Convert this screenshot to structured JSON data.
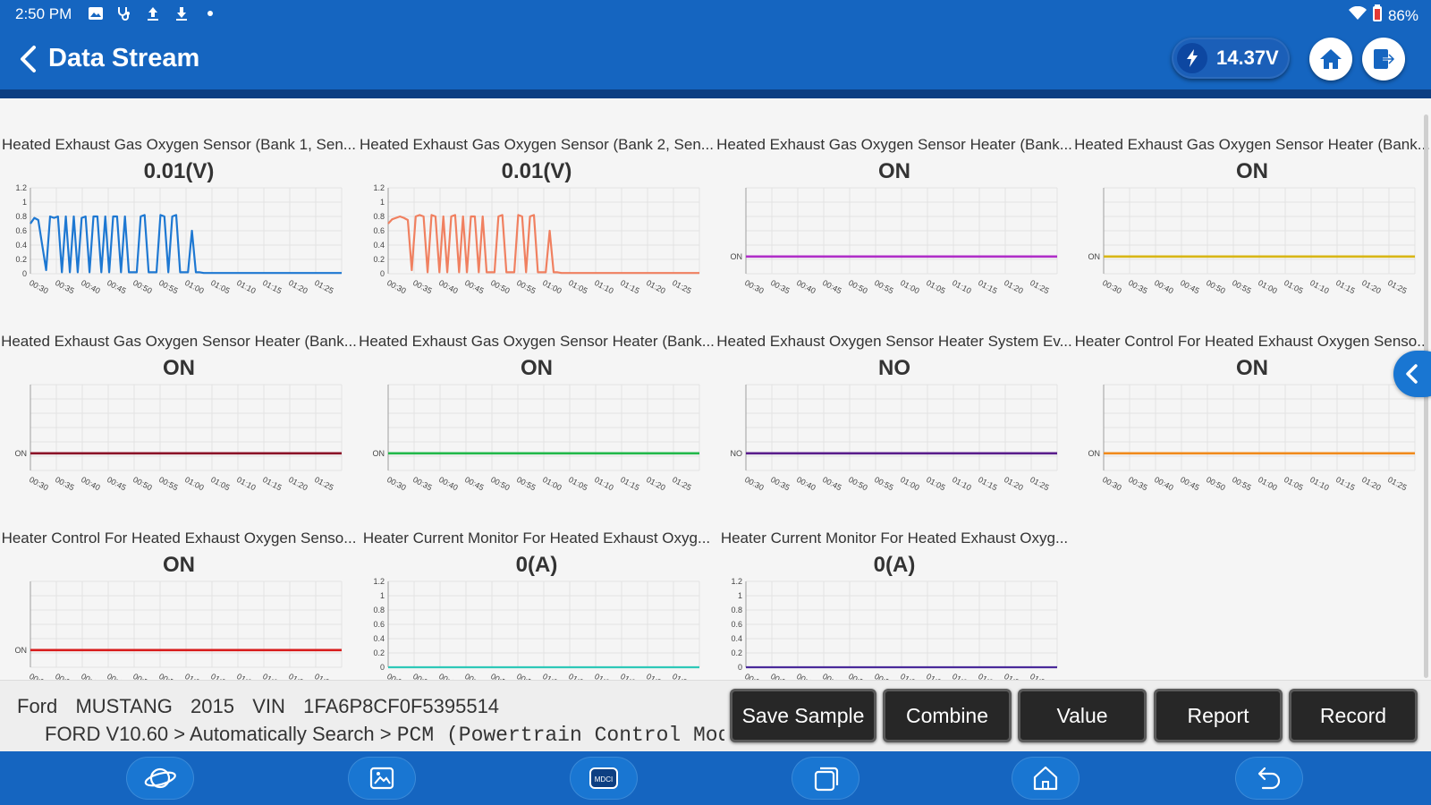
{
  "status_bar": {
    "time": "2:50 PM",
    "icons": [
      "image-icon",
      "stethoscope-icon",
      "upload-icon",
      "download-icon",
      "dot-icon"
    ],
    "battery": "86%"
  },
  "header": {
    "title": "Data Stream",
    "voltage": "14.37V"
  },
  "x_ticks": [
    "00:30",
    "00:35",
    "00:40",
    "00:45",
    "00:50",
    "00:55",
    "01:00",
    "01:05",
    "01:10",
    "01:15",
    "01:20",
    "01:25"
  ],
  "y_ticks": [
    "0",
    "0.2",
    "0.4",
    "0.6",
    "0.8",
    "1",
    "1.2"
  ],
  "panels": [
    {
      "name": "Heated Exhaust Gas Oxygen Sensor (Bank 1, Sen...",
      "value": "0.01(V)"
    },
    {
      "name": "Heated Exhaust Gas Oxygen Sensor (Bank 2, Sen...",
      "value": "0.01(V)"
    },
    {
      "name": "Heated Exhaust Gas Oxygen Sensor Heater (Bank...",
      "value": "ON"
    },
    {
      "name": "Heated Exhaust Gas Oxygen Sensor Heater (Bank...",
      "value": "ON"
    },
    {
      "name": "Heated Exhaust Gas Oxygen Sensor Heater (Bank...",
      "value": "ON"
    },
    {
      "name": "Heated Exhaust Gas Oxygen Sensor Heater (Bank...",
      "value": "ON"
    },
    {
      "name": "Heated Exhaust Oxygen Sensor Heater System Ev...",
      "value": "NO"
    },
    {
      "name": "Heater Control For Heated Exhaust Oxygen Senso...",
      "value": "ON"
    },
    {
      "name": "Heater Control For Heated Exhaust Oxygen Senso...",
      "value": "ON"
    },
    {
      "name": "Heater Current Monitor For Heated Exhaust Oxyg...",
      "value": "0(A)"
    },
    {
      "name": "Heater Current Monitor For Heated Exhaust Oxyg...",
      "value": "0(A)"
    }
  ],
  "chart_data": [
    {
      "type": "line",
      "kind": "numeric",
      "color": "#1e78d2",
      "ylim": [
        0,
        1.2
      ],
      "x_ticks": [
        "00:30",
        "00:35",
        "00:40",
        "00:45",
        "00:50",
        "00:55",
        "01:00",
        "01:05",
        "01:10",
        "01:15",
        "01:20",
        "01:25"
      ],
      "values": [
        0.7,
        0.78,
        0.75,
        0.4,
        0.05,
        0.8,
        0.78,
        0.8,
        0.02,
        0.8,
        0.02,
        0.8,
        0.02,
        0.78,
        0.8,
        0.02,
        0.8,
        0.8,
        0.02,
        0.8,
        0.02,
        0.8,
        0.8,
        0.02,
        0.8,
        0.02,
        0.02,
        0.02,
        0.8,
        0.82,
        0.02,
        0.02,
        0.02,
        0.82,
        0.8,
        0.02,
        0.8,
        0.82,
        0.02,
        0.02,
        0.02,
        0.6,
        0.02,
        0.02,
        0.01,
        0.01,
        0.01,
        0.01,
        0.01,
        0.01,
        0.01,
        0.01,
        0.01,
        0.01,
        0.01,
        0.01,
        0.01,
        0.01,
        0.01,
        0.01,
        0.01,
        0.01,
        0.01,
        0.01,
        0.01,
        0.01,
        0.01,
        0.01,
        0.01,
        0.01,
        0.01,
        0.01,
        0.01,
        0.01,
        0.01,
        0.01,
        0.01,
        0.01,
        0.01,
        0.01
      ]
    },
    {
      "type": "line",
      "kind": "numeric",
      "color": "#f08060",
      "ylim": [
        0,
        1.2
      ],
      "x_ticks": [
        "00:30",
        "00:35",
        "00:40",
        "00:45",
        "00:50",
        "00:55",
        "01:00",
        "01:05",
        "01:10",
        "01:15",
        "01:20",
        "01:25"
      ],
      "values": [
        0.7,
        0.76,
        0.78,
        0.8,
        0.78,
        0.75,
        0.05,
        0.8,
        0.82,
        0.8,
        0.02,
        0.82,
        0.8,
        0.02,
        0.8,
        0.02,
        0.8,
        0.82,
        0.02,
        0.8,
        0.02,
        0.8,
        0.8,
        0.02,
        0.8,
        0.02,
        0.02,
        0.02,
        0.8,
        0.82,
        0.02,
        0.02,
        0.02,
        0.82,
        0.8,
        0.02,
        0.8,
        0.82,
        0.02,
        0.02,
        0.02,
        0.6,
        0.02,
        0.02,
        0.01,
        0.01,
        0.01,
        0.01,
        0.01,
        0.01,
        0.01,
        0.01,
        0.01,
        0.01,
        0.01,
        0.01,
        0.01,
        0.01,
        0.01,
        0.01,
        0.01,
        0.01,
        0.01,
        0.01,
        0.01,
        0.01,
        0.01,
        0.01,
        0.01,
        0.01,
        0.01,
        0.01,
        0.01,
        0.01,
        0.01,
        0.01,
        0.01,
        0.01,
        0.01,
        0.01
      ]
    },
    {
      "type": "line",
      "kind": "state",
      "state": "ON",
      "color": "#b02ec8",
      "x_ticks": [
        "00:30",
        "00:35",
        "00:40",
        "00:45",
        "00:50",
        "00:55",
        "01:00",
        "01:05",
        "01:10",
        "01:15",
        "01:20",
        "01:25"
      ]
    },
    {
      "type": "line",
      "kind": "state",
      "state": "ON",
      "color": "#d8b616",
      "x_ticks": [
        "00:30",
        "00:35",
        "00:40",
        "00:45",
        "00:50",
        "00:55",
        "01:00",
        "01:05",
        "01:10",
        "01:15",
        "01:20",
        "01:25"
      ]
    },
    {
      "type": "line",
      "kind": "state",
      "state": "ON",
      "color": "#8b1028",
      "x_ticks": [
        "00:30",
        "00:35",
        "00:40",
        "00:45",
        "00:50",
        "00:55",
        "01:00",
        "01:05",
        "01:10",
        "01:15",
        "01:20",
        "01:25"
      ]
    },
    {
      "type": "line",
      "kind": "state",
      "state": "ON",
      "color": "#22b84a",
      "x_ticks": [
        "00:30",
        "00:35",
        "00:40",
        "00:45",
        "00:50",
        "00:55",
        "01:00",
        "01:05",
        "01:10",
        "01:15",
        "01:20",
        "01:25"
      ]
    },
    {
      "type": "line",
      "kind": "state",
      "state": "NO",
      "color": "#5a1e8c",
      "x_ticks": [
        "00:30",
        "00:35",
        "00:40",
        "00:45",
        "00:50",
        "00:55",
        "01:00",
        "01:05",
        "01:10",
        "01:15",
        "01:20",
        "01:25"
      ]
    },
    {
      "type": "line",
      "kind": "state",
      "state": "ON",
      "color": "#f08a1c",
      "x_ticks": [
        "00:30",
        "00:35",
        "00:40",
        "00:45",
        "00:50",
        "00:55",
        "01:00",
        "01:05",
        "01:10",
        "01:15",
        "01:20",
        "01:25"
      ]
    },
    {
      "type": "line",
      "kind": "state",
      "state": "ON",
      "color": "#d81c1c",
      "x_ticks": [
        "00:3",
        "00:3",
        "00:4",
        "00:4",
        "00:5",
        "00:5",
        "01:0",
        "01:0",
        "01:1",
        "01:1",
        "01:2",
        "01:2"
      ]
    },
    {
      "type": "line",
      "kind": "numeric",
      "color": "#2ec8b8",
      "ylim": [
        0,
        1.2
      ],
      "x_ticks": [
        "00:3",
        "00:3",
        "00:4",
        "00:4",
        "00:5",
        "00:5",
        "01:0",
        "01:0",
        "01:1",
        "01:1",
        "01:2",
        "01:2"
      ],
      "values": [
        0,
        0,
        0,
        0,
        0,
        0,
        0,
        0,
        0,
        0,
        0,
        0
      ]
    },
    {
      "type": "line",
      "kind": "numeric",
      "color": "#4a2a9a",
      "ylim": [
        0,
        1.2
      ],
      "x_ticks": [
        "00:3",
        "00:3",
        "00:4",
        "00:4",
        "00:5",
        "00:5",
        "01:0",
        "01:0",
        "01:1",
        "01:1",
        "01:2",
        "01:2"
      ],
      "values": [
        0,
        0,
        0,
        0,
        0,
        0,
        0,
        0,
        0,
        0,
        0,
        0
      ]
    }
  ],
  "info_bar": {
    "vehicle": "Ford  MUSTANG  2015  VIN  1FA6P8CF0F5395514",
    "path_prefix": "FORD V10.60 > Automatically Search > ",
    "path_module": "PCM (Powertrain Control Mod"
  },
  "actions": {
    "save_sample": "Save Sample",
    "combine": "Combine",
    "value": "Value",
    "report": "Report",
    "record": "Record"
  },
  "nav": {
    "icons": [
      "planet-icon",
      "gallery-icon",
      "mdci-icon",
      "recent-apps-icon",
      "home-icon",
      "back-icon"
    ],
    "mdci_label": "MDCI"
  }
}
